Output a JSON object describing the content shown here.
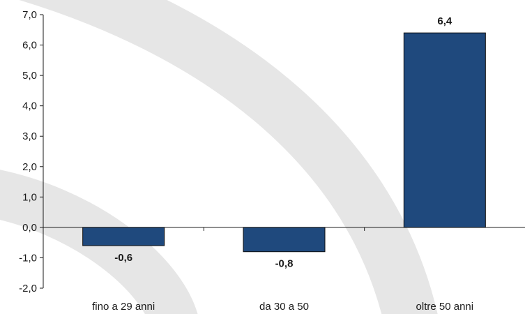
{
  "chart_data": {
    "type": "bar",
    "categories": [
      "fino a 29 anni",
      "da 30 a 50",
      "oltre 50 anni"
    ],
    "values": [
      -0.6,
      -0.8,
      6.4
    ],
    "data_labels": [
      "-0,6",
      "-0,8",
      "6,4"
    ],
    "ylim": [
      -2.0,
      7.0
    ],
    "yticks": [
      7.0,
      6.0,
      5.0,
      4.0,
      3.0,
      2.0,
      1.0,
      0.0,
      -1.0,
      -2.0
    ],
    "ytick_labels": [
      "7,0",
      "6,0",
      "5,0",
      "4,0",
      "3,0",
      "2,0",
      "1,0",
      "0,0",
      "-1,0",
      "-2,0"
    ],
    "grid": false,
    "legend": "none",
    "title": "",
    "xlabel": "",
    "ylabel": "",
    "bar_color": "#1f497d",
    "bar_edge_color": "#0d0d0d",
    "watermark_color": "#e6e6e6"
  }
}
